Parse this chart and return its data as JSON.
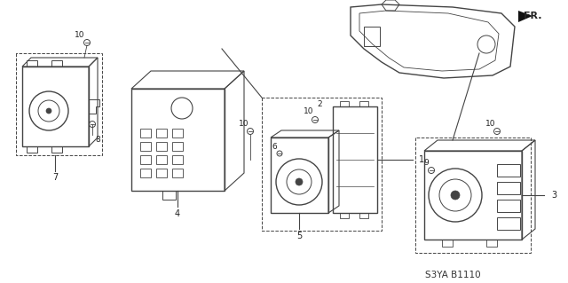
{
  "bg_color": "#ffffff",
  "line_color": "#444444",
  "text_color": "#222222",
  "diagram_code": "S3YA B1110",
  "figsize": [
    6.4,
    3.19
  ],
  "dpi": 100
}
